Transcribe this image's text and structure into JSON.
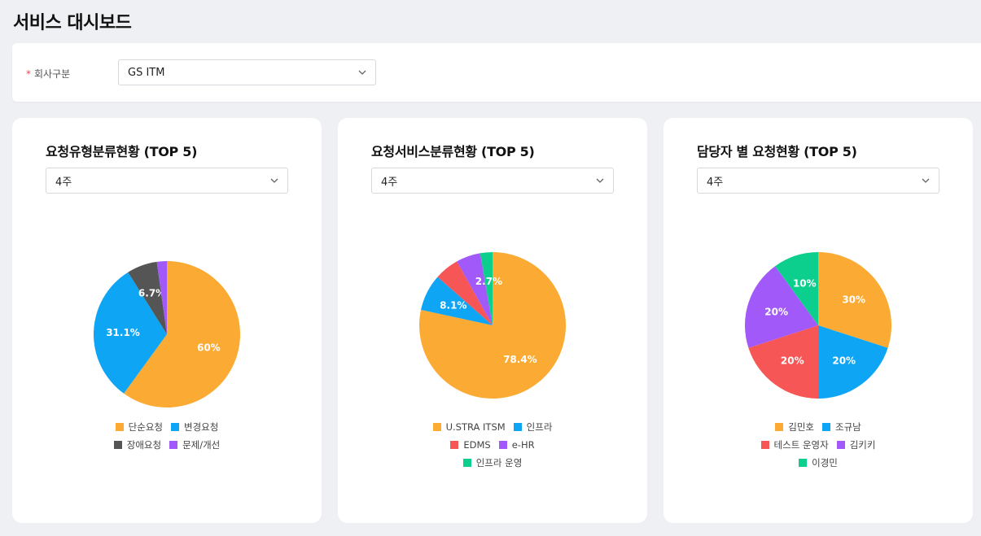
{
  "page": {
    "title": "서비스 대시보드"
  },
  "filter": {
    "label": "회사구분",
    "required_mark": "*",
    "company_value": "GS ITM"
  },
  "colors": {
    "orange": "#fbaa33",
    "blue": "#0ea5f5",
    "gray": "#555555",
    "purple": "#a259f9",
    "red": "#f75656",
    "green": "#0ccf8e"
  },
  "cards": [
    {
      "title": "요청유형분류현황 (TOP 5)",
      "period": "4주",
      "legend_rows": [
        [
          0,
          1
        ],
        [
          2,
          3
        ]
      ]
    },
    {
      "title": "요청서비스분류현황 (TOP 5)",
      "period": "4주",
      "legend_rows": [
        [
          0,
          1
        ],
        [
          2,
          3
        ],
        [
          4
        ]
      ]
    },
    {
      "title": "담당자 별 요청현황 (TOP 5)",
      "period": "4주",
      "legend_rows": [
        [
          0,
          1
        ],
        [
          2,
          3
        ],
        [
          4
        ]
      ]
    }
  ],
  "chart_data": [
    {
      "type": "pie",
      "slices": [
        {
          "name": "단순요청",
          "value": 60,
          "label": "60%",
          "color": "#fbaa33"
        },
        {
          "name": "변경요청",
          "value": 31.1,
          "label": "31.1%",
          "color": "#0ea5f5"
        },
        {
          "name": "장애요청",
          "value": 6.7,
          "label": "6.7%",
          "color": "#555555"
        },
        {
          "name": "문제/개선",
          "value": 2.2,
          "label": "",
          "color": "#a259f9"
        }
      ]
    },
    {
      "type": "pie",
      "slices": [
        {
          "name": "U.STRA ITSM",
          "value": 78.4,
          "label": "78.4%",
          "color": "#fbaa33"
        },
        {
          "name": "인프라",
          "value": 8.1,
          "label": "8.1%",
          "color": "#0ea5f5"
        },
        {
          "name": "EDMS",
          "value": 5.4,
          "label": "",
          "color": "#f75656"
        },
        {
          "name": "e-HR",
          "value": 5.4,
          "label": "",
          "color": "#a259f9"
        },
        {
          "name": "인프라 운영",
          "value": 2.7,
          "label": "2.7%",
          "color": "#0ccf8e"
        }
      ]
    },
    {
      "type": "pie",
      "slices": [
        {
          "name": "김민호",
          "value": 30,
          "label": "30%",
          "color": "#fbaa33"
        },
        {
          "name": "조규남",
          "value": 20,
          "label": "20%",
          "color": "#0ea5f5"
        },
        {
          "name": "테스트 운영자",
          "value": 20,
          "label": "20%",
          "color": "#f75656"
        },
        {
          "name": "김키키",
          "value": 20,
          "label": "20%",
          "color": "#a259f9"
        },
        {
          "name": "이경민",
          "value": 10,
          "label": "10%",
          "color": "#0ccf8e"
        }
      ]
    }
  ]
}
